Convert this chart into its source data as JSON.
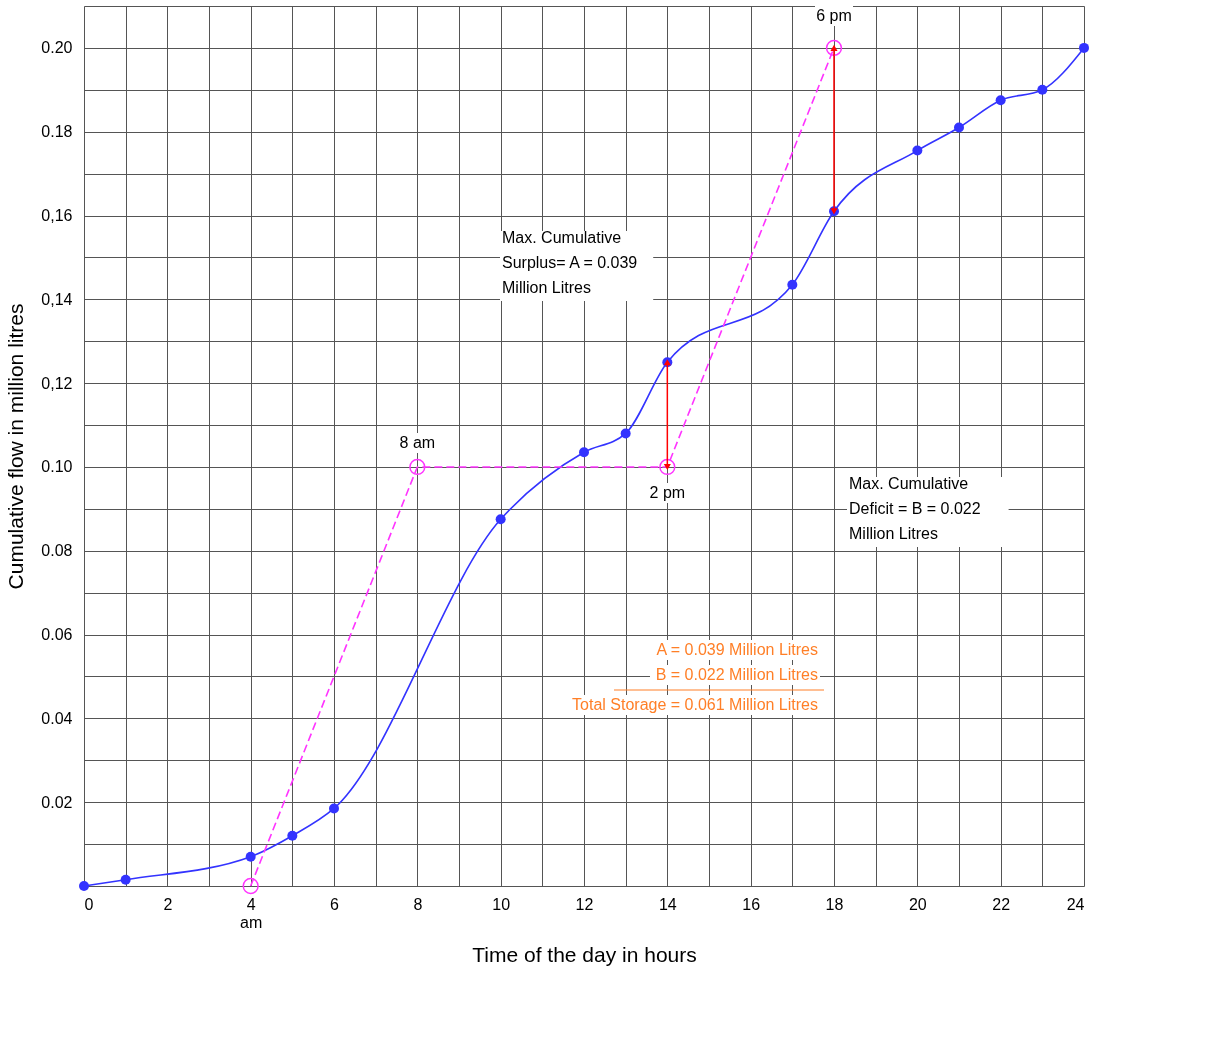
{
  "chart_data": {
    "type": "line",
    "xlabel": "Time of the day in hours",
    "ylabel": "Cumulative flow in million litres",
    "xlim": [
      0,
      24
    ],
    "ylim": [
      0,
      0.21
    ],
    "xticks": [
      0,
      {
        "value": 1,
        "label": null
      },
      2,
      {
        "value": 3,
        "label": null
      },
      {
        "value": 4,
        "label": "4\nam"
      },
      {
        "value": 5,
        "label": null
      },
      6,
      {
        "value": 7,
        "label": null
      },
      8,
      {
        "value": 9,
        "label": null
      },
      10,
      {
        "value": 11,
        "label": null
      },
      12,
      {
        "value": 13,
        "label": null
      },
      14,
      {
        "value": 15,
        "label": null
      },
      16,
      {
        "value": 17,
        "label": null
      },
      18,
      {
        "value": 19,
        "label": null
      },
      20,
      {
        "value": 21,
        "label": null
      },
      22,
      {
        "value": 23,
        "label": null
      },
      24
    ],
    "yticks": [
      {
        "value": 0,
        "label": null
      },
      {
        "value": 0.01,
        "label": null
      },
      {
        "value": 0.02,
        "label": "0.02"
      },
      {
        "value": 0.03,
        "label": null
      },
      {
        "value": 0.04,
        "label": "0.04"
      },
      {
        "value": 0.05,
        "label": null
      },
      {
        "value": 0.06,
        "label": "0.06"
      },
      {
        "value": 0.07,
        "label": null
      },
      {
        "value": 0.08,
        "label": "0.08"
      },
      {
        "value": 0.09,
        "label": null
      },
      {
        "value": 0.1,
        "label": "0.10"
      },
      {
        "value": 0.11,
        "label": null
      },
      {
        "value": 0.12,
        "label": "0,12"
      },
      {
        "value": 0.13,
        "label": null
      },
      {
        "value": 0.14,
        "label": "0,14"
      },
      {
        "value": 0.15,
        "label": null
      },
      {
        "value": 0.16,
        "label": "0,16"
      },
      {
        "value": 0.17,
        "label": null
      },
      {
        "value": 0.18,
        "label": "0.18"
      },
      {
        "value": 0.19,
        "label": null
      },
      {
        "value": 0.2,
        "label": "0.20"
      },
      {
        "value": 0.21,
        "label": null
      }
    ],
    "grid": true,
    "series": [
      {
        "color": "#3333ff",
        "marker": "circle",
        "line_style": "solid",
        "x": [
          0,
          1,
          4,
          5,
          6,
          10,
          12,
          13,
          14,
          17,
          18,
          20,
          21,
          22,
          23,
          24
        ],
        "values": [
          0,
          0.0015,
          0.007,
          0.012,
          0.0185,
          0.0875,
          0.1035,
          0.108,
          0.125,
          0.1435,
          0.161,
          0.1755,
          0.181,
          0.1875,
          0.19,
          0.2
        ]
      },
      {
        "color": "#ff33ff",
        "marker": "circle",
        "line_style": "dashed",
        "x": [
          4,
          8,
          14,
          18
        ],
        "values": [
          0,
          0.1,
          0.1,
          0.2
        ],
        "errors": [
          null,
          null,
          [
            0.1,
            0.125
          ],
          [
            0.161,
            0.2
          ]
        ]
      }
    ],
    "annotations": [
      {
        "text": "8 am",
        "x": 8,
        "y": 0.1
      },
      {
        "text": "2 pm",
        "x": 14,
        "y": 0.1
      },
      {
        "text": "6 pm",
        "x": 18,
        "y": 0.2
      },
      "Max. Cumulative\nSurplus= A = 0.039\nMillion Litres",
      "Max. Cumulative\nDeficit = B = 0.022\nMillion Litres",
      "A = 0.039 Million Litres",
      "B = 0.022 Million Litres",
      "Total Storage = 0.061 Million Litres"
    ]
  }
}
